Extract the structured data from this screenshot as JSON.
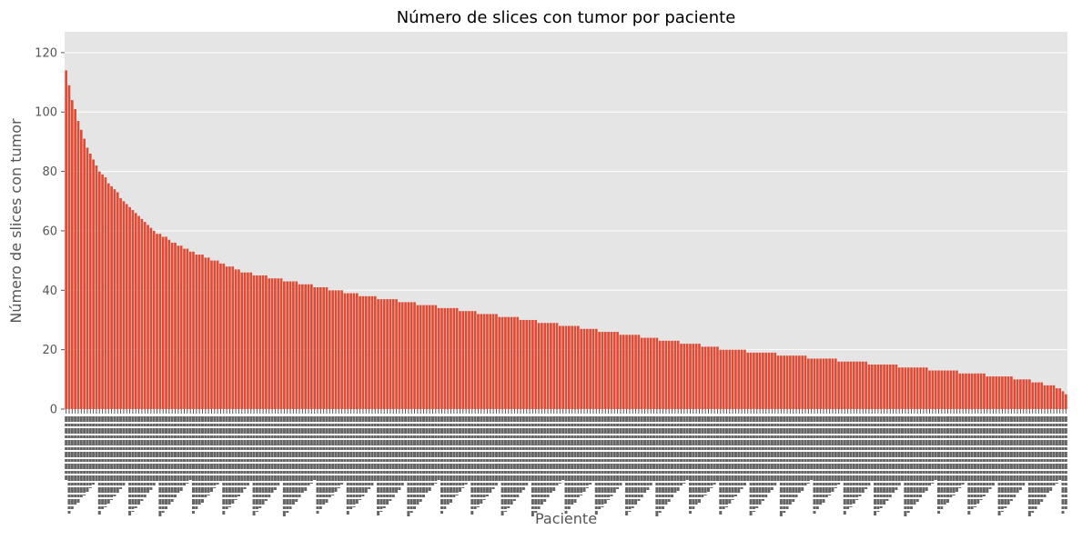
{
  "chart_data": {
    "type": "bar",
    "title": "Número de slices con tumor por paciente",
    "xlabel": "Paciente",
    "ylabel": "Número de slices con tumor",
    "ylim": [
      0,
      127
    ],
    "yticks": [
      0,
      20,
      40,
      60,
      80,
      100,
      120
    ],
    "grid": true,
    "bar_color": "#E24A33",
    "plot_background": "#E5E5E5",
    "grid_color": "#FFFFFF",
    "tick_label_color": "#555555",
    "sort": "descending",
    "category_count": 331,
    "category_labels_legible": false,
    "values_profile": [
      {
        "rank": 1,
        "value": 114
      },
      {
        "rank": 3,
        "value": 104
      },
      {
        "rank": 5,
        "value": 97
      },
      {
        "rank": 8,
        "value": 88
      },
      {
        "rank": 12,
        "value": 80
      },
      {
        "rank": 20,
        "value": 70
      },
      {
        "rank": 30,
        "value": 60
      },
      {
        "rank": 40,
        "value": 54
      },
      {
        "rank": 60,
        "value": 46
      },
      {
        "rank": 80,
        "value": 42
      },
      {
        "rank": 100,
        "value": 38
      },
      {
        "rank": 120,
        "value": 35
      },
      {
        "rank": 140,
        "value": 32
      },
      {
        "rank": 160,
        "value": 29
      },
      {
        "rank": 180,
        "value": 26
      },
      {
        "rank": 200,
        "value": 23
      },
      {
        "rank": 220,
        "value": 20
      },
      {
        "rank": 240,
        "value": 18
      },
      {
        "rank": 260,
        "value": 16
      },
      {
        "rank": 280,
        "value": 14
      },
      {
        "rank": 300,
        "value": 12
      },
      {
        "rank": 318,
        "value": 10
      },
      {
        "rank": 325,
        "value": 8
      },
      {
        "rank": 329,
        "value": 7
      },
      {
        "rank": 331,
        "value": 5
      }
    ]
  }
}
